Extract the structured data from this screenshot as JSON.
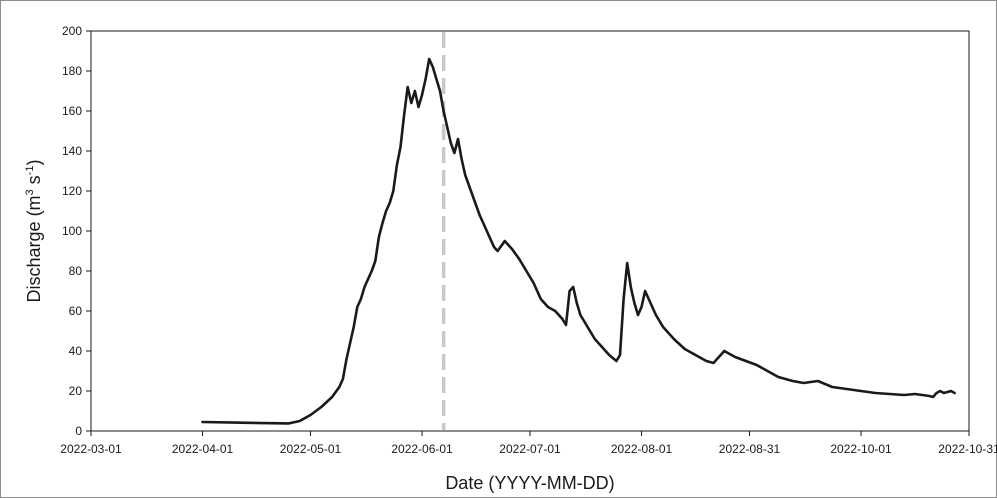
{
  "chart_data": {
    "type": "line",
    "title": "",
    "xlabel": "Date (YYYY-MM-DD)",
    "ylabel": "Discharge (m³ s⁻¹)",
    "ylabel_base": "Discharge (m",
    "ylabel_sup1": "3",
    "ylabel_mid": " s",
    "ylabel_sup2": "-1",
    "ylabel_end": ")",
    "xlim": [
      "2022-03-01",
      "2022-10-31"
    ],
    "ylim": [
      0,
      200
    ],
    "x_ticks": [
      "2022-03-01",
      "2022-04-01",
      "2022-05-01",
      "2022-06-01",
      "2022-07-01",
      "2022-08-01",
      "2022-08-31",
      "2022-10-01",
      "2022-10-31"
    ],
    "y_ticks": [
      0,
      20,
      40,
      60,
      80,
      100,
      120,
      140,
      160,
      180,
      200
    ],
    "grid": false,
    "legend": "none",
    "line_color": "#1a1a1a",
    "vline": {
      "date": "2022-06-07",
      "color": "#c8c8c8",
      "style": "dashed"
    },
    "series": [
      {
        "points": [
          [
            "2022-04-01",
            4.5
          ],
          [
            "2022-04-10",
            4.2
          ],
          [
            "2022-04-20",
            3.9
          ],
          [
            "2022-04-25",
            3.8
          ],
          [
            "2022-04-28",
            5.0
          ],
          [
            "2022-05-01",
            8.0
          ],
          [
            "2022-05-04",
            12.0
          ],
          [
            "2022-05-07",
            17.0
          ],
          [
            "2022-05-09",
            22.0
          ],
          [
            "2022-05-10",
            26.0
          ],
          [
            "2022-05-11",
            36.0
          ],
          [
            "2022-05-12",
            44.0
          ],
          [
            "2022-05-13",
            52.0
          ],
          [
            "2022-05-14",
            62.0
          ],
          [
            "2022-05-15",
            66.0
          ],
          [
            "2022-05-16",
            72.0
          ],
          [
            "2022-05-17",
            76.0
          ],
          [
            "2022-05-18",
            80.0
          ],
          [
            "2022-05-19",
            85.0
          ],
          [
            "2022-05-20",
            97.0
          ],
          [
            "2022-05-21",
            104.0
          ],
          [
            "2022-05-22",
            110.0
          ],
          [
            "2022-05-23",
            114.0
          ],
          [
            "2022-05-24",
            120.0
          ],
          [
            "2022-05-25",
            133.0
          ],
          [
            "2022-05-26",
            142.0
          ],
          [
            "2022-05-27",
            158.0
          ],
          [
            "2022-05-28",
            172.0
          ],
          [
            "2022-05-29",
            164.0
          ],
          [
            "2022-05-30",
            170.0
          ],
          [
            "2022-05-31",
            162.0
          ],
          [
            "2022-06-01",
            168.0
          ],
          [
            "2022-06-02",
            176.0
          ],
          [
            "2022-06-03",
            186.0
          ],
          [
            "2022-06-04",
            182.0
          ],
          [
            "2022-06-05",
            176.0
          ],
          [
            "2022-06-06",
            170.0
          ],
          [
            "2022-06-07",
            160.0
          ],
          [
            "2022-06-08",
            152.0
          ],
          [
            "2022-06-09",
            144.0
          ],
          [
            "2022-06-10",
            139.0
          ],
          [
            "2022-06-11",
            146.0
          ],
          [
            "2022-06-12",
            136.0
          ],
          [
            "2022-06-13",
            128.0
          ],
          [
            "2022-06-15",
            118.0
          ],
          [
            "2022-06-17",
            108.0
          ],
          [
            "2022-06-19",
            100.0
          ],
          [
            "2022-06-21",
            92.0
          ],
          [
            "2022-06-22",
            90.0
          ],
          [
            "2022-06-24",
            95.0
          ],
          [
            "2022-06-26",
            91.0
          ],
          [
            "2022-06-28",
            86.0
          ],
          [
            "2022-06-30",
            80.0
          ],
          [
            "2022-07-02",
            74.0
          ],
          [
            "2022-07-04",
            66.0
          ],
          [
            "2022-07-06",
            62.0
          ],
          [
            "2022-07-08",
            60.0
          ],
          [
            "2022-07-10",
            56.0
          ],
          [
            "2022-07-11",
            53.0
          ],
          [
            "2022-07-12",
            70.0
          ],
          [
            "2022-07-13",
            72.0
          ],
          [
            "2022-07-14",
            64.0
          ],
          [
            "2022-07-15",
            58.0
          ],
          [
            "2022-07-17",
            52.0
          ],
          [
            "2022-07-19",
            46.0
          ],
          [
            "2022-07-21",
            42.0
          ],
          [
            "2022-07-23",
            38.0
          ],
          [
            "2022-07-25",
            35.0
          ],
          [
            "2022-07-26",
            38.0
          ],
          [
            "2022-07-27",
            66.0
          ],
          [
            "2022-07-28",
            84.0
          ],
          [
            "2022-07-29",
            72.0
          ],
          [
            "2022-07-30",
            64.0
          ],
          [
            "2022-07-31",
            58.0
          ],
          [
            "2022-08-01",
            62.0
          ],
          [
            "2022-08-02",
            70.0
          ],
          [
            "2022-08-03",
            66.0
          ],
          [
            "2022-08-05",
            58.0
          ],
          [
            "2022-08-07",
            52.0
          ],
          [
            "2022-08-10",
            46.0
          ],
          [
            "2022-08-13",
            41.0
          ],
          [
            "2022-08-16",
            38.0
          ],
          [
            "2022-08-19",
            35.0
          ],
          [
            "2022-08-21",
            34.0
          ],
          [
            "2022-08-23",
            38.0
          ],
          [
            "2022-08-24",
            40.0
          ],
          [
            "2022-08-27",
            37.0
          ],
          [
            "2022-08-30",
            35.0
          ],
          [
            "2022-09-02",
            33.0
          ],
          [
            "2022-09-05",
            30.0
          ],
          [
            "2022-09-08",
            27.0
          ],
          [
            "2022-09-12",
            25.0
          ],
          [
            "2022-09-15",
            24.0
          ],
          [
            "2022-09-19",
            25.0
          ],
          [
            "2022-09-23",
            22.0
          ],
          [
            "2022-09-27",
            21.0
          ],
          [
            "2022-10-01",
            20.0
          ],
          [
            "2022-10-05",
            19.0
          ],
          [
            "2022-10-09",
            18.5
          ],
          [
            "2022-10-13",
            18.0
          ],
          [
            "2022-10-16",
            18.5
          ],
          [
            "2022-10-20",
            17.5
          ],
          [
            "2022-10-21",
            17.0
          ],
          [
            "2022-10-22",
            19.0
          ],
          [
            "2022-10-23",
            20.0
          ],
          [
            "2022-10-24",
            19.0
          ],
          [
            "2022-10-26",
            20.0
          ],
          [
            "2022-10-27",
            19.0
          ]
        ]
      }
    ]
  }
}
